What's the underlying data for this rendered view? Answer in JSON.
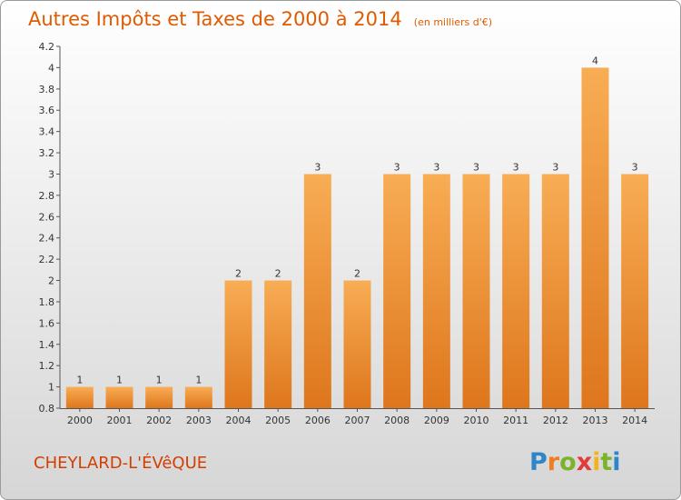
{
  "chart_data": {
    "type": "bar",
    "title": "Autres Impôts et Taxes de 2000 à 2014",
    "subtitle": "(en milliers d'€)",
    "categories": [
      "2000",
      "2001",
      "2002",
      "2003",
      "2004",
      "2005",
      "2006",
      "2007",
      "2008",
      "2009",
      "2010",
      "2011",
      "2012",
      "2013",
      "2014"
    ],
    "values": [
      1,
      1,
      1,
      1,
      2,
      2,
      3,
      2,
      3,
      3,
      3,
      3,
      3,
      4,
      3
    ],
    "value_labels": [
      "1",
      "1",
      "1",
      "1",
      "2",
      "2",
      "3",
      "2",
      "3",
      "3",
      "3",
      "3",
      "3",
      "4",
      "3"
    ],
    "ylim": [
      0.8,
      4.2
    ],
    "y_ticks": [
      "0.8",
      "1",
      "1.2",
      "1.4",
      "1.6",
      "1.8",
      "2",
      "2.2",
      "2.4",
      "2.6",
      "2.8",
      "3",
      "3.2",
      "3.4",
      "3.6",
      "3.8",
      "4",
      "4.2"
    ],
    "xlabel": "",
    "ylabel": "",
    "grid": false,
    "colors": {
      "bar_light": "#f7a850",
      "bar_dark": "#e07820",
      "title": "#e05a00",
      "place": "#d23f00"
    }
  },
  "footer": {
    "place_name": "CHEYLARD-L'ÉVêQUE",
    "brand_letters": [
      {
        "ch": "P",
        "color": "#2e86c8"
      },
      {
        "ch": "r",
        "color": "#f07e1e"
      },
      {
        "ch": "o",
        "color": "#7cb32a"
      },
      {
        "ch": "x",
        "color": "#e23a3a"
      },
      {
        "ch": "i",
        "color": "#f6b21a"
      },
      {
        "ch": "t",
        "color": "#7cb32a"
      },
      {
        "ch": "i",
        "color": "#2e86c8"
      }
    ]
  }
}
